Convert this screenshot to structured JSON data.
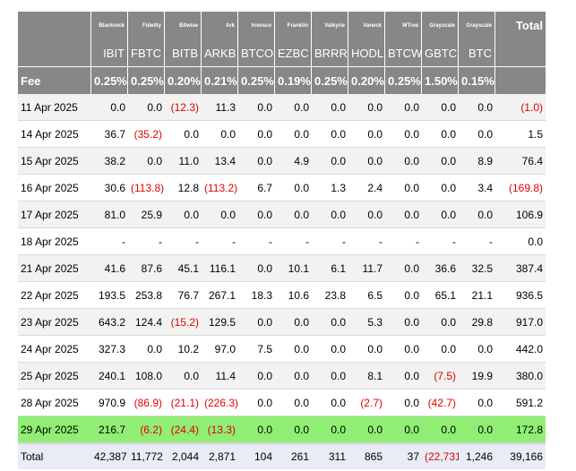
{
  "providers": [
    "Blackrock",
    "Fidelity",
    "Bitwise",
    "Ark",
    "Invesco",
    "Franklin",
    "Valkyrie",
    "Vaneck",
    "WTree",
    "Grayscale",
    "Grayscale"
  ],
  "total_label": "Total",
  "tickers": [
    "IBIT",
    "FBTC",
    "BITB",
    "ARKB",
    "BTCO",
    "EZBC",
    "BRRR",
    "HODL",
    "BTCW",
    "GBTC",
    "BTC"
  ],
  "fee_label": "Fee",
  "fees": [
    "0.25%",
    "0.25%",
    "0.20%",
    "0.21%",
    "0.25%",
    "0.19%",
    "0.25%",
    "0.20%",
    "0.25%",
    "1.50%",
    "0.15%"
  ],
  "rows": [
    {
      "date": "11 Apr 2025",
      "values": [
        "0.0",
        "0.0",
        "(12.3)",
        "11.3",
        "0.0",
        "0.0",
        "0.0",
        "0.0",
        "0.0",
        "0.0",
        "0.0"
      ],
      "total": "(1.0)"
    },
    {
      "date": "14 Apr 2025",
      "values": [
        "36.7",
        "(35.2)",
        "0.0",
        "0.0",
        "0.0",
        "0.0",
        "0.0",
        "0.0",
        "0.0",
        "0.0",
        "0.0"
      ],
      "total": "1.5"
    },
    {
      "date": "15 Apr 2025",
      "values": [
        "38.2",
        "0.0",
        "11.0",
        "13.4",
        "0.0",
        "4.9",
        "0.0",
        "0.0",
        "0.0",
        "0.0",
        "8.9"
      ],
      "total": "76.4"
    },
    {
      "date": "16 Apr 2025",
      "values": [
        "30.6",
        "(113.8)",
        "12.8",
        "(113.2)",
        "6.7",
        "0.0",
        "1.3",
        "2.4",
        "0.0",
        "0.0",
        "3.4"
      ],
      "total": "(169.8)"
    },
    {
      "date": "17 Apr 2025",
      "values": [
        "81.0",
        "25.9",
        "0.0",
        "0.0",
        "0.0",
        "0.0",
        "0.0",
        "0.0",
        "0.0",
        "0.0",
        "0.0"
      ],
      "total": "106.9"
    },
    {
      "date": "18 Apr 2025",
      "values": [
        "-",
        "-",
        "-",
        "-",
        "-",
        "-",
        "-",
        "-",
        "-",
        "-",
        "-"
      ],
      "total": "0.0"
    },
    {
      "date": "21 Apr 2025",
      "values": [
        "41.6",
        "87.6",
        "45.1",
        "116.1",
        "0.0",
        "10.1",
        "6.1",
        "11.7",
        "0.0",
        "36.6",
        "32.5"
      ],
      "total": "387.4"
    },
    {
      "date": "22 Apr 2025",
      "values": [
        "193.5",
        "253.8",
        "76.7",
        "267.1",
        "18.3",
        "10.6",
        "23.8",
        "6.5",
        "0.0",
        "65.1",
        "21.1"
      ],
      "total": "936.5"
    },
    {
      "date": "23 Apr 2025",
      "values": [
        "643.2",
        "124.4",
        "(15.2)",
        "129.5",
        "0.0",
        "0.0",
        "0.0",
        "5.3",
        "0.0",
        "0.0",
        "29.8"
      ],
      "total": "917.0"
    },
    {
      "date": "24 Apr 2025",
      "values": [
        "327.3",
        "0.0",
        "10.2",
        "97.0",
        "7.5",
        "0.0",
        "0.0",
        "0.0",
        "0.0",
        "0.0",
        "0.0"
      ],
      "total": "442.0"
    },
    {
      "date": "25 Apr 2025",
      "values": [
        "240.1",
        "108.0",
        "0.0",
        "11.4",
        "0.0",
        "0.0",
        "0.0",
        "8.1",
        "0.0",
        "(7.5)",
        "19.9"
      ],
      "total": "380.0"
    },
    {
      "date": "28 Apr 2025",
      "values": [
        "970.9",
        "(86.9)",
        "(21.1)",
        "(226.3)",
        "0.0",
        "0.0",
        "0.0",
        "(2.7)",
        "0.0",
        "(42.7)",
        "0.0"
      ],
      "total": "591.2"
    },
    {
      "date": "29 Apr 2025",
      "values": [
        "216.7",
        "(6.2)",
        "(24.4)",
        "(13.3)",
        "0.0",
        "0.0",
        "0.0",
        "0.0",
        "0.0",
        "0.0",
        "0.0"
      ],
      "total": "172.8",
      "highlight": true
    }
  ],
  "totals": {
    "label": "Total",
    "values": [
      "42,387",
      "11,772",
      "2,044",
      "2,871",
      "104",
      "261",
      "311",
      "865",
      "37",
      "(22,731)",
      "1,246"
    ],
    "total": "39,166"
  },
  "colors": {
    "header_bg": "#878787",
    "negative": "#e30000",
    "highlight_row": "#90ee74",
    "total_row_bg": "#e8ecf6",
    "stripe": "#f2f2f2"
  }
}
